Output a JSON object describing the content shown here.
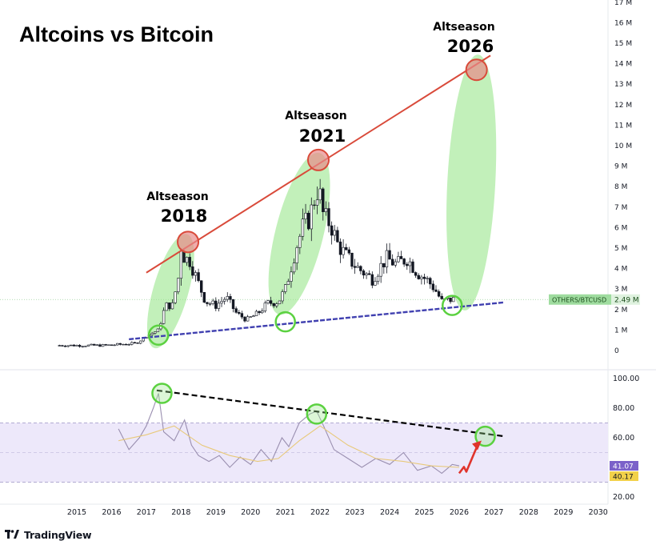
{
  "chart_data": [
    {
      "type": "candlestick",
      "title": "Altcoins vs Bitcoin",
      "symbol": "OTHERS/BTCUSD",
      "last_value_label": "2.49 M",
      "unit": "M",
      "ylim": [
        0,
        17
      ],
      "y_ticks": [
        17,
        16,
        15,
        14,
        13,
        12,
        11,
        10,
        9,
        8,
        7,
        6,
        5,
        4,
        3,
        2,
        1,
        0
      ],
      "y_tick_labels": [
        "17 M",
        "16 M",
        "15 M",
        "14 M",
        "13 M",
        "12 M",
        "11 M",
        "10 M",
        "9 M",
        "8 M",
        "7 M",
        "6 M",
        "5 M",
        "4 M",
        "3 M",
        "2 M",
        "1 M",
        "0"
      ],
      "series": [
        {
          "name": "OTHERS/BTCUSD (monthly, approx.)",
          "x": [
            2014.5,
            2015.8,
            2016.7,
            2017.05,
            2017.35,
            2017.55,
            2017.75,
            2017.95,
            2018.0,
            2018.1,
            2018.25,
            2018.45,
            2018.7,
            2019.0,
            2019.3,
            2019.6,
            2019.9,
            2020.2,
            2020.5,
            2020.8,
            2021.0,
            2021.15,
            2021.3,
            2021.5,
            2021.7,
            2021.85,
            2021.95,
            2022.1,
            2022.3,
            2022.5,
            2022.8,
            2023.1,
            2023.5,
            2023.9,
            2024.2,
            2024.5,
            2024.8,
            2025.1,
            2025.3,
            2025.5,
            2025.8
          ],
          "values": [
            0.25,
            0.25,
            0.35,
            0.75,
            1.0,
            2.2,
            2.2,
            3.8,
            5.1,
            4.5,
            4.4,
            3.5,
            2.4,
            2.2,
            2.6,
            1.8,
            1.5,
            1.8,
            2.3,
            2.4,
            3.0,
            4.0,
            5.0,
            6.0,
            6.5,
            7.5,
            8.0,
            6.5,
            6.2,
            5.2,
            4.5,
            4.0,
            3.5,
            4.5,
            4.2,
            4.5,
            3.8,
            3.4,
            3.0,
            2.4,
            2.5
          ]
        }
      ],
      "annotations": [
        {
          "word": "Altseason",
          "year": "2018",
          "peak_year": 2018.2,
          "peak_value": 5.3
        },
        {
          "word": "Altseason",
          "year": "2021",
          "peak_year": 2021.95,
          "peak_value": 9.3
        },
        {
          "word": "Altseason",
          "year": "2026",
          "peak_year": 2026.5,
          "peak_value": 13.7
        }
      ],
      "lines": [
        {
          "name": "resistance",
          "color": "#d94a3a",
          "from": [
            2017.0,
            3.8
          ],
          "to": [
            2026.9,
            14.4
          ]
        },
        {
          "name": "support",
          "color": "#4040b0",
          "from": [
            2016.5,
            0.55
          ],
          "to": [
            2027.3,
            2.35
          ]
        }
      ],
      "support_touches": [
        {
          "year": 2017.35,
          "value": 0.75
        },
        {
          "year": 2021.0,
          "value": 1.4
        },
        {
          "year": 2025.8,
          "value": 2.2
        }
      ]
    },
    {
      "type": "line",
      "name": "RSI",
      "ylim": [
        20,
        100
      ],
      "y_ticks": [
        100,
        80,
        60,
        20
      ],
      "y_tick_labels": [
        "100.00",
        "80.00",
        "60.00",
        "20.00"
      ],
      "band": [
        30,
        70
      ],
      "series": [
        {
          "name": "RSI",
          "color": "#9a8fb0",
          "x": [
            2016.2,
            2016.5,
            2016.8,
            2017.0,
            2017.2,
            2017.35,
            2017.5,
            2017.8,
            2018.1,
            2018.3,
            2018.5,
            2018.8,
            2019.1,
            2019.4,
            2019.7,
            2020.0,
            2020.3,
            2020.6,
            2020.9,
            2021.1,
            2021.4,
            2021.7,
            2021.9,
            2022.1,
            2022.4,
            2022.8,
            2023.2,
            2023.6,
            2024.0,
            2024.4,
            2024.8,
            2025.2,
            2025.5,
            2025.8,
            2026.0
          ],
          "values": [
            66,
            52,
            60,
            68,
            80,
            90,
            64,
            58,
            72,
            55,
            48,
            44,
            48,
            40,
            47,
            42,
            52,
            44,
            60,
            54,
            70,
            76,
            78,
            68,
            52,
            46,
            40,
            46,
            42,
            50,
            38,
            41,
            36,
            42,
            41
          ]
        },
        {
          "name": "RSI MA",
          "color": "#e8c97a",
          "x": [
            2016.2,
            2017.0,
            2017.8,
            2018.6,
            2019.4,
            2020.2,
            2020.8,
            2021.4,
            2022.0,
            2022.8,
            2023.6,
            2024.4,
            2025.2,
            2026.0
          ],
          "values": [
            58,
            62,
            68,
            55,
            48,
            44,
            46,
            58,
            68,
            55,
            46,
            44,
            41,
            40
          ]
        }
      ],
      "value_labels": [
        {
          "text": "41.07",
          "color": "#7b61c9"
        },
        {
          "text": "40.17",
          "color": "#f2d14a"
        }
      ],
      "trendline": {
        "color": "#000000",
        "style": "dashed",
        "from": [
          2017.3,
          92
        ],
        "to": [
          2027.3,
          61
        ]
      },
      "touches": [
        {
          "year": 2017.45,
          "value": 90
        },
        {
          "year": 2021.9,
          "value": 76
        },
        {
          "year": 2026.75,
          "value": 61
        }
      ],
      "projection_arrow": {
        "color": "#e0342c",
        "from": [
          2026.0,
          36
        ],
        "to": [
          2026.6,
          57
        ]
      }
    }
  ],
  "x_axis": {
    "years": [
      "2015",
      "2016",
      "2017",
      "2018",
      "2019",
      "2020",
      "2021",
      "2022",
      "2023",
      "2024",
      "2025",
      "2026",
      "2027",
      "2028",
      "2029",
      "2030"
    ]
  },
  "branding": {
    "name": "TradingView"
  },
  "colors": {
    "red_line": "#d94a3a",
    "blue_line": "#4040b0",
    "green_fill": "#9ae68c",
    "green_circle": "#5bd140",
    "red_circle_fill": "#e88a8a",
    "rsi_band": "#ede8fa",
    "up_candle": "#ffffff",
    "down_candle": "#131722"
  }
}
